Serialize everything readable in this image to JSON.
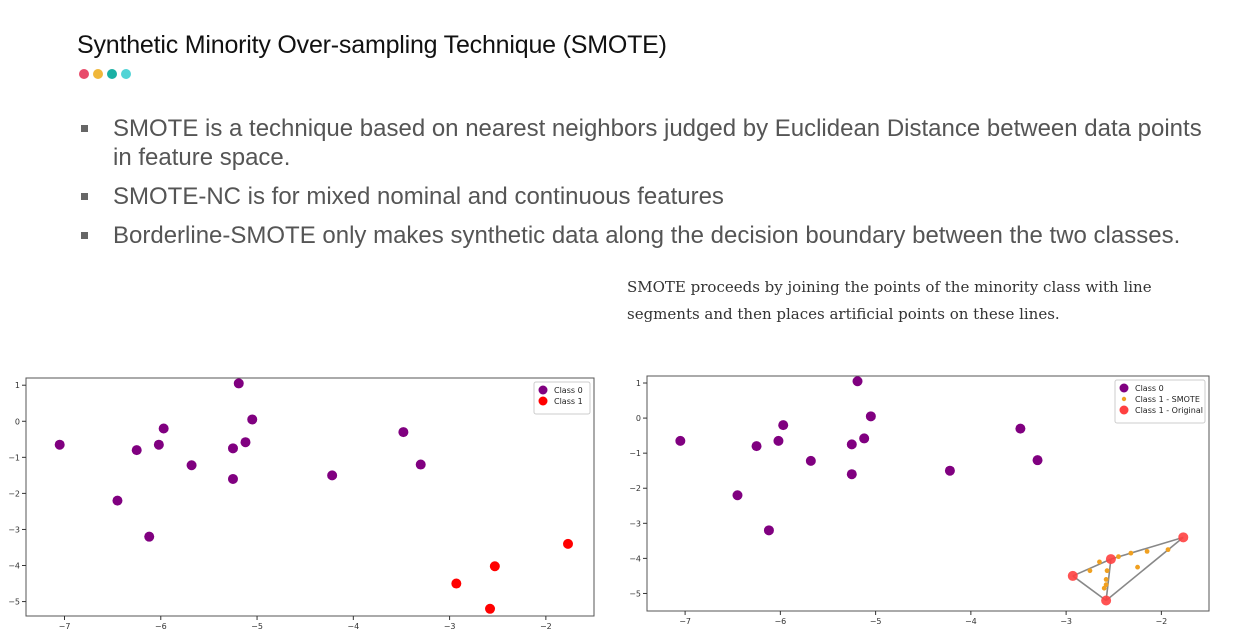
{
  "slide": {
    "title": "Synthetic Minority Over-sampling Technique (SMOTE)",
    "accent_dots": [
      "#e84a6a",
      "#f0b73a",
      "#1ab0a4",
      "#52d4d6"
    ],
    "bullets": [
      "SMOTE is a technique based on nearest neighbors judged by Euclidean Distance between data points in feature space.",
      "SMOTE-NC is for mixed nominal and continuous features",
      "Borderline-SMOTE only makes synthetic data along the decision boundary between the two classes."
    ],
    "caption": "SMOTE proceeds by joining the points of the minority class with line segments and then places artificial points on these lines."
  },
  "chart_data": [
    {
      "type": "scatter",
      "xlim": [
        -7.4,
        -1.5
      ],
      "ylim": [
        -5.4,
        1.2
      ],
      "xticks": [
        -7,
        -6,
        -5,
        -4,
        -3,
        -2
      ],
      "yticks": [
        1,
        0,
        -1,
        -2,
        -3,
        -4,
        -5
      ],
      "legend_position": "top-right",
      "series": [
        {
          "name": "Class 0",
          "color": "#800080",
          "points": [
            [
              -7.05,
              -0.65
            ],
            [
              -6.45,
              -2.2
            ],
            [
              -6.25,
              -0.8
            ],
            [
              -6.12,
              -3.2
            ],
            [
              -6.02,
              -0.65
            ],
            [
              -5.97,
              -0.2
            ],
            [
              -5.68,
              -1.22
            ],
            [
              -5.25,
              -0.75
            ],
            [
              -5.25,
              -1.6
            ],
            [
              -5.19,
              1.05
            ],
            [
              -5.12,
              -0.58
            ],
            [
              -5.05,
              0.05
            ],
            [
              -4.22,
              -1.5
            ],
            [
              -3.48,
              -0.3
            ],
            [
              -3.3,
              -1.2
            ]
          ]
        },
        {
          "name": "Class 1",
          "color": "#ff0000",
          "points": [
            [
              -2.93,
              -4.5
            ],
            [
              -2.58,
              -5.2
            ],
            [
              -2.53,
              -4.02
            ],
            [
              -1.77,
              -3.4
            ]
          ]
        }
      ]
    },
    {
      "type": "scatter",
      "xlim": [
        -7.4,
        -1.5
      ],
      "ylim": [
        -5.5,
        1.2
      ],
      "xticks": [
        -7,
        -6,
        -5,
        -4,
        -3,
        -2
      ],
      "yticks": [
        1,
        0,
        -1,
        -2,
        -3,
        -4,
        -5
      ],
      "legend_position": "top-right",
      "series": [
        {
          "name": "Class 0",
          "color": "#800080",
          "points": [
            [
              -7.05,
              -0.65
            ],
            [
              -6.45,
              -2.2
            ],
            [
              -6.25,
              -0.8
            ],
            [
              -6.12,
              -3.2
            ],
            [
              -6.02,
              -0.65
            ],
            [
              -5.97,
              -0.2
            ],
            [
              -5.68,
              -1.22
            ],
            [
              -5.25,
              -0.75
            ],
            [
              -5.25,
              -1.6
            ],
            [
              -5.19,
              1.05
            ],
            [
              -5.12,
              -0.58
            ],
            [
              -5.05,
              0.05
            ],
            [
              -4.22,
              -1.5
            ],
            [
              -3.48,
              -0.3
            ],
            [
              -3.3,
              -1.2
            ]
          ]
        },
        {
          "name": "Class 1 - SMOTE",
          "color": "#f0a020",
          "points": [
            [
              -2.75,
              -4.35
            ],
            [
              -2.65,
              -4.1
            ],
            [
              -2.45,
              -3.95
            ],
            [
              -2.32,
              -3.85
            ],
            [
              -2.15,
              -3.8
            ],
            [
              -1.93,
              -3.75
            ],
            [
              -2.25,
              -4.25
            ],
            [
              -2.58,
              -4.6
            ],
            [
              -2.58,
              -4.75
            ],
            [
              -2.6,
              -4.85
            ],
            [
              -2.57,
              -4.35
            ]
          ]
        },
        {
          "name": "Class 1 - Original",
          "color": "#ff4040",
          "points": [
            [
              -2.93,
              -4.5
            ],
            [
              -2.58,
              -5.2
            ],
            [
              -2.53,
              -4.02
            ],
            [
              -1.77,
              -3.4
            ]
          ]
        }
      ],
      "segments": [
        [
          0,
          1
        ],
        [
          0,
          2
        ],
        [
          2,
          3
        ],
        [
          1,
          3
        ],
        [
          1,
          2
        ]
      ]
    }
  ]
}
